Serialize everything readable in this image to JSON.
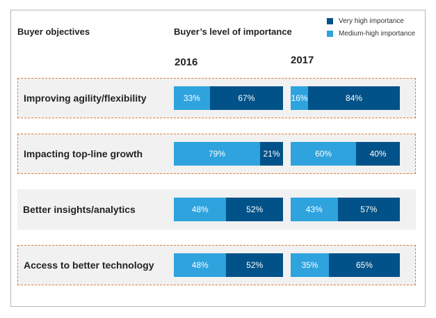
{
  "colors": {
    "very_high": "#005288",
    "medium_high": "#2ea3de",
    "row_bg": "#f1f1f1",
    "dashed_border": "#e87a35"
  },
  "headers": {
    "objectives": "Buyer objectives",
    "importance": "Buyer’s level of importance"
  },
  "legend": {
    "very_high": "Very high importance",
    "medium_high": "Medium-high importance"
  },
  "chart_data": {
    "type": "bar",
    "stacked": true,
    "orientation": "horizontal",
    "groups": [
      "2016",
      "2017"
    ],
    "categories": [
      "Improving agility/flexibility",
      "Impacting top-line growth",
      "Better insights/analytics",
      "Access to better technology"
    ],
    "series": [
      {
        "name": "Medium-high importance",
        "values": {
          "2016": [
            33,
            79,
            48,
            48
          ],
          "2017": [
            16,
            60,
            43,
            35
          ]
        },
        "labels": {
          "2016": [
            "33%",
            "79%",
            "48%",
            "48%"
          ],
          "2017": [
            "16%",
            "60%",
            "43%",
            "35%"
          ]
        }
      },
      {
        "name": "Very high importance",
        "values": {
          "2016": [
            67,
            21,
            52,
            52
          ],
          "2017": [
            84,
            40,
            57,
            65
          ]
        },
        "labels": {
          "2016": [
            "67%",
            "21%",
            "52%",
            "52%"
          ],
          "2017": [
            "84%",
            "40%",
            "57%",
            "65%"
          ]
        }
      }
    ],
    "highlighted_rows": [
      true,
      true,
      false,
      true
    ],
    "unit": "%"
  }
}
